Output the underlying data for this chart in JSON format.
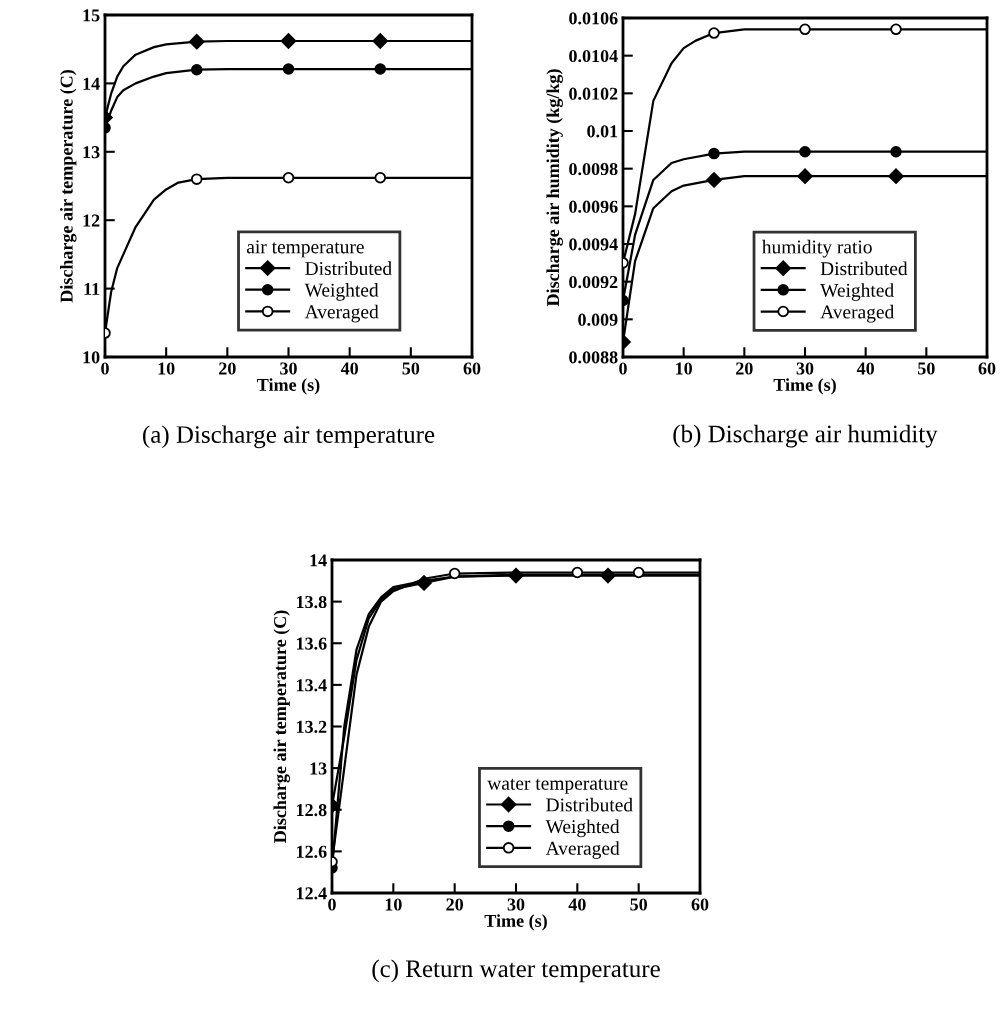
{
  "chart_data": [
    {
      "type": "line",
      "title": "(a) Discharge air temperature",
      "xlabel": "Time (s)",
      "ylabel": "Discharge air temperature (C)",
      "legend_title": "air temperature",
      "legend": "bottom right",
      "xlim": [
        0,
        60
      ],
      "xticks": [
        0,
        10,
        20,
        30,
        40,
        50,
        60
      ],
      "ylim": [
        10,
        15
      ],
      "yticks": [
        10,
        11,
        12,
        13,
        14,
        15
      ],
      "series": [
        {
          "type": "line",
          "color": "#000000",
          "marker": "none",
          "x": [
            0,
            1,
            2,
            3,
            5,
            8,
            10,
            15,
            20,
            30,
            45,
            60
          ],
          "values": [
            13.5,
            13.85,
            14.1,
            14.25,
            14.42,
            14.53,
            14.57,
            14.61,
            14.62,
            14.62,
            14.62,
            14.62
          ]
        },
        {
          "type": "scatter",
          "name": "Distributed",
          "color": "#000000",
          "marker": "diamond",
          "x": [
            0,
            15,
            30,
            45
          ],
          "values": [
            13.5,
            14.61,
            14.62,
            14.62
          ]
        },
        {
          "type": "line",
          "color": "#000000",
          "marker": "none",
          "x": [
            0,
            1,
            2,
            3,
            5,
            8,
            10,
            15,
            20,
            30,
            45,
            60
          ],
          "values": [
            13.35,
            13.6,
            13.8,
            13.9,
            14.0,
            14.1,
            14.15,
            14.2,
            14.21,
            14.21,
            14.21,
            14.21
          ]
        },
        {
          "type": "scatter",
          "name": "Weighted",
          "color": "#000000",
          "marker": "circle",
          "x": [
            0,
            15,
            30,
            45
          ],
          "values": [
            13.35,
            14.2,
            14.21,
            14.21
          ]
        },
        {
          "type": "line",
          "color": "#000000",
          "marker": "none",
          "x": [
            0,
            1,
            2,
            3,
            5,
            8,
            10,
            12,
            15,
            20,
            30,
            45,
            60
          ],
          "values": [
            10.35,
            10.95,
            11.3,
            11.5,
            11.9,
            12.3,
            12.45,
            12.55,
            12.6,
            12.62,
            12.62,
            12.62,
            12.62
          ]
        },
        {
          "type": "scatter",
          "name": "Averaged",
          "color": "#ffffff",
          "marker": "circle",
          "x": [
            0,
            15,
            30,
            45
          ],
          "values": [
            10.35,
            12.6,
            12.62,
            12.62
          ]
        }
      ]
    },
    {
      "type": "line",
      "title": "(b) Discharge air humidity",
      "xlabel": "Time (s)",
      "ylabel": "Discharge air humidity (kg/kg)",
      "legend_title": "humidity ratio",
      "legend": "bottom right",
      "xlim": [
        0,
        60
      ],
      "xticks": [
        0,
        10,
        20,
        30,
        40,
        50,
        60
      ],
      "ylim": [
        0.0088,
        0.0106
      ],
      "yticks": [
        0.0088,
        0.009,
        0.0092,
        0.0094,
        0.0096,
        0.0098,
        0.01,
        0.0102,
        0.0104,
        0.0106
      ],
      "series": [
        {
          "type": "line",
          "color": "#000000",
          "marker": "none",
          "x": [
            0,
            2,
            5,
            8,
            10,
            15,
            20,
            30,
            45,
            60
          ],
          "values": [
            0.00888,
            0.00931,
            0.00959,
            0.00968,
            0.00971,
            0.00974,
            0.00976,
            0.00976,
            0.00976,
            0.00976
          ]
        },
        {
          "type": "scatter",
          "name": "Distributed",
          "color": "#000000",
          "marker": "diamond",
          "x": [
            0,
            15,
            30,
            45
          ],
          "values": [
            0.00888,
            0.00974,
            0.00976,
            0.00976
          ]
        },
        {
          "type": "line",
          "color": "#000000",
          "marker": "none",
          "x": [
            0,
            2,
            5,
            8,
            10,
            15,
            20,
            30,
            45,
            60
          ],
          "values": [
            0.0091,
            0.00945,
            0.00974,
            0.00983,
            0.00985,
            0.00988,
            0.00989,
            0.00989,
            0.00989,
            0.00989
          ]
        },
        {
          "type": "scatter",
          "name": "Weighted",
          "color": "#000000",
          "marker": "circle",
          "x": [
            0,
            15,
            30,
            45
          ],
          "values": [
            0.0091,
            0.00988,
            0.00989,
            0.00989
          ]
        },
        {
          "type": "line",
          "color": "#000000",
          "marker": "none",
          "x": [
            0,
            2,
            5,
            8,
            10,
            12,
            15,
            20,
            30,
            45,
            60
          ],
          "values": [
            0.0093,
            0.00956,
            0.01016,
            0.01036,
            0.01044,
            0.01048,
            0.01052,
            0.01054,
            0.01054,
            0.01054,
            0.01054
          ]
        },
        {
          "type": "scatter",
          "name": "Averaged",
          "color": "#ffffff",
          "marker": "circle",
          "x": [
            0,
            15,
            30,
            45
          ],
          "values": [
            0.0093,
            0.01052,
            0.01054,
            0.01054
          ]
        }
      ]
    },
    {
      "type": "line",
      "title": "(c) Return water temperature",
      "xlabel": "Time (s)",
      "ylabel": "Discharge air temperature (C)",
      "legend_title": "water temperature",
      "legend": "bottom",
      "xlim": [
        0,
        60
      ],
      "xticks": [
        0,
        10,
        20,
        30,
        40,
        50,
        60
      ],
      "ylim": [
        12.4,
        14
      ],
      "yticks": [
        12.4,
        12.6,
        12.8,
        13,
        13.2,
        13.4,
        13.6,
        13.8,
        14
      ],
      "series": [
        {
          "type": "line",
          "color": "#000000",
          "marker": "none",
          "x": [
            0,
            2,
            4,
            6,
            8,
            10,
            15,
            20,
            30,
            45,
            60
          ],
          "values": [
            12.82,
            13.15,
            13.52,
            13.72,
            13.81,
            13.86,
            13.89,
            13.92,
            13.925,
            13.925,
            13.925
          ]
        },
        {
          "type": "scatter",
          "name": "Distributed",
          "color": "#000000",
          "marker": "diamond",
          "x": [
            0,
            15,
            30,
            45
          ],
          "values": [
            12.82,
            13.89,
            13.925,
            13.925
          ]
        },
        {
          "type": "line",
          "color": "#000000",
          "marker": "none",
          "x": [
            0,
            2,
            4,
            6,
            8,
            10,
            15,
            20,
            30,
            45,
            60
          ],
          "values": [
            12.52,
            13.2,
            13.57,
            13.74,
            13.82,
            13.87,
            13.9,
            13.92,
            13.93,
            13.93,
            13.93
          ]
        },
        {
          "type": "scatter",
          "name": "Weighted",
          "color": "#000000",
          "marker": "circle",
          "x": [
            0
          ],
          "values": [
            12.52
          ]
        },
        {
          "type": "line",
          "color": "#000000",
          "marker": "none",
          "x": [
            0,
            2,
            4,
            6,
            8,
            10,
            15,
            20,
            30,
            40,
            50,
            60
          ],
          "values": [
            12.55,
            13.0,
            13.45,
            13.68,
            13.8,
            13.85,
            13.91,
            13.935,
            13.94,
            13.94,
            13.94,
            13.94
          ]
        },
        {
          "type": "scatter",
          "name": "Averaged",
          "color": "#ffffff",
          "marker": "circle",
          "x": [
            0,
            20,
            40,
            50
          ],
          "values": [
            12.55,
            13.935,
            13.94,
            13.94
          ]
        }
      ]
    }
  ]
}
